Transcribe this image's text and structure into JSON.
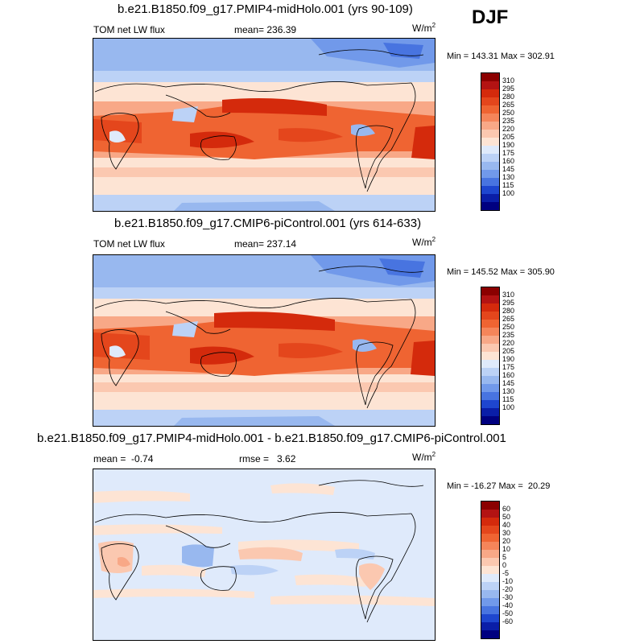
{
  "season_label": "DJF",
  "chart_data": [
    {
      "type": "heatmap",
      "title": "b.e21.B1850.f09_g17.PMIP4-midHolo.001 (yrs 90-109)",
      "left_label": "TOM net LW flux",
      "center_label": "mean= 236.39",
      "units": "W/m",
      "units_sup": "2",
      "minmax": "Min = 143.31 Max = 302.91",
      "colorbar_levels": [
        "310",
        "295",
        "280",
        "265",
        "250",
        "235",
        "220",
        "205",
        "190",
        "175",
        "160",
        "145",
        "130",
        "115",
        "100"
      ],
      "colorbar_colors": [
        "#8b0000",
        "#b31313",
        "#d42a0c",
        "#e4461c",
        "#ef6432",
        "#f5855a",
        "#f8a887",
        "#fbc8b0",
        "#fde4d4",
        "#dfeafb",
        "#bcd2f6",
        "#98b8ef",
        "#7199ea",
        "#4874e0",
        "#1e46cf",
        "#0a1ea8",
        "#000080"
      ]
    },
    {
      "type": "heatmap",
      "title": "b.e21.B1850.f09_g17.CMIP6-piControl.001 (yrs 614-633)",
      "left_label": "TOM net LW flux",
      "center_label": "mean= 237.14",
      "units": "W/m",
      "units_sup": "2",
      "minmax": "Min = 145.52 Max = 305.90",
      "colorbar_levels": [
        "310",
        "295",
        "280",
        "265",
        "250",
        "235",
        "220",
        "205",
        "190",
        "175",
        "160",
        "145",
        "130",
        "115",
        "100"
      ],
      "colorbar_colors": [
        "#8b0000",
        "#b31313",
        "#d42a0c",
        "#e4461c",
        "#ef6432",
        "#f5855a",
        "#f8a887",
        "#fbc8b0",
        "#fde4d4",
        "#dfeafb",
        "#bcd2f6",
        "#98b8ef",
        "#7199ea",
        "#4874e0",
        "#1e46cf",
        "#0a1ea8",
        "#000080"
      ]
    },
    {
      "type": "heatmap",
      "title": "b.e21.B1850.f09_g17.PMIP4-midHolo.001 - b.e21.B1850.f09_g17.CMIP6-piControl.001",
      "left_label": "mean =  -0.74",
      "center_label": "rmse =   3.62",
      "units": "W/m",
      "units_sup": "2",
      "minmax": "Min = -16.27 Max =  20.29",
      "colorbar_levels": [
        "60",
        "50",
        "40",
        "30",
        "20",
        "10",
        "5",
        "0",
        "-5",
        "-10",
        "-20",
        "-30",
        "-40",
        "-50",
        "-60"
      ],
      "colorbar_colors": [
        "#8b0000",
        "#b31313",
        "#d42a0c",
        "#e4461c",
        "#ef6432",
        "#f5855a",
        "#f8a887",
        "#fbc8b0",
        "#fde4d4",
        "#dfeafb",
        "#bcd2f6",
        "#98b8ef",
        "#7199ea",
        "#4874e0",
        "#1e46cf",
        "#0a1ea8",
        "#000080"
      ]
    }
  ]
}
